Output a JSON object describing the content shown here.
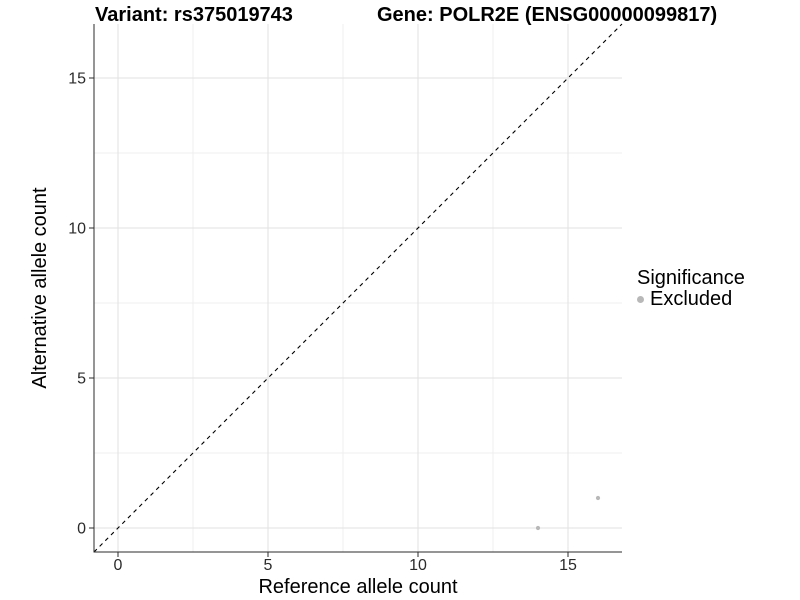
{
  "header": {
    "variant_title": "Variant: rs375019743",
    "gene_title": "Gene: POLR2E (ENSG00000099817)"
  },
  "axes": {
    "x": {
      "label": "Reference allele count"
    },
    "y": {
      "label": "Alternative allele count"
    }
  },
  "legend": {
    "title": "Significance",
    "items": [
      {
        "label": "Excluded",
        "color": "#b8b8b8"
      }
    ]
  },
  "colors": {
    "axis_line": "#2b2b2b",
    "tick_label": "#2b2b2b",
    "grid_major": "#e2e2e2",
    "grid_minor": "#efefef",
    "identity_line": "#000000",
    "point": "#b8b8b8"
  },
  "chart_data": {
    "type": "scatter",
    "title": "Variant: rs375019743 | Gene: POLR2E (ENSG00000099817)",
    "xlabel": "Reference allele count",
    "ylabel": "Alternative allele count",
    "xlim": [
      -0.8,
      16.8
    ],
    "ylim": [
      -0.8,
      16.8
    ],
    "x_major_ticks": [
      0,
      5,
      10,
      15
    ],
    "x_minor_ticks": [
      2.5,
      7.5,
      12.5
    ],
    "y_major_ticks": [
      0,
      5,
      10,
      15
    ],
    "y_minor_ticks": [
      2.5,
      7.5,
      12.5
    ],
    "grid": true,
    "legend_position": "right",
    "series": [
      {
        "name": "Excluded",
        "color": "#b8b8b8",
        "points": [
          [
            14,
            0
          ],
          [
            16,
            1
          ]
        ]
      }
    ],
    "reference_line": {
      "style": "dashed",
      "slope": 1,
      "intercept": 0,
      "color": "#000000"
    }
  }
}
